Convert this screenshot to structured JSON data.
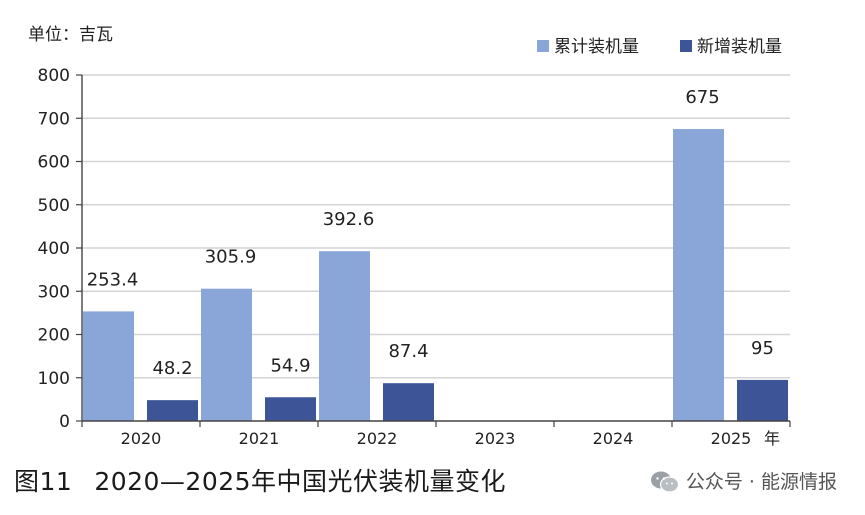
{
  "caption": {
    "figure_number": "图11",
    "title": "2020—2025年中国光伏装机量变化"
  },
  "watermark": {
    "text": "公众号 · 能源情报",
    "icon": "wechat-icon"
  },
  "chart_data": {
    "type": "bar",
    "unit_label": "单位：吉瓦",
    "x_unit_label": "年",
    "categories": [
      "2020",
      "2021",
      "2022",
      "2023",
      "2024",
      "2025"
    ],
    "series": [
      {
        "name": "累计装机量",
        "color": "#8aa5d8",
        "values": [
          253.4,
          305.9,
          392.6,
          null,
          null,
          675
        ],
        "labels": [
          "253.4",
          "305.9",
          "392.6",
          "",
          "",
          "675"
        ]
      },
      {
        "name": "新增装机量",
        "color": "#3d5497",
        "values": [
          48.2,
          54.9,
          87.4,
          null,
          null,
          95
        ],
        "labels": [
          "48.2",
          "54.9",
          "87.4",
          "",
          "",
          "95"
        ]
      }
    ],
    "y_ticks": [
      "0",
      "100",
      "200",
      "300",
      "400",
      "500",
      "600",
      "700",
      "800"
    ],
    "ylim": [
      0,
      800
    ],
    "grid": true,
    "legend_position": "top-right"
  }
}
